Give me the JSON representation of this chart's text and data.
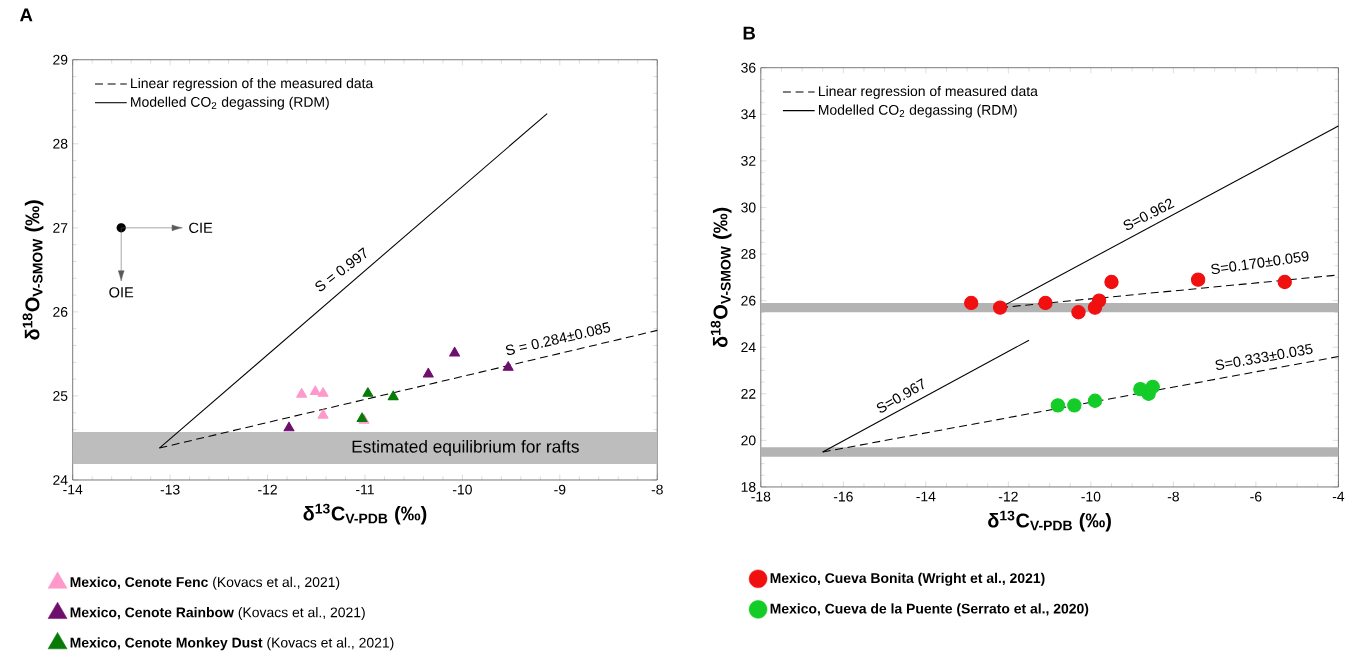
{
  "chart_data": [
    {
      "type": "scatter",
      "title": "A",
      "xlabel": "δ$^{13}$C$_{V-PDB}$ (‰)",
      "ylabel": "δ$^{18}$O$_{V-SMOW}$ (‰)",
      "xlim": [
        -14,
        -8
      ],
      "ylim": [
        24,
        29
      ],
      "xticks": [
        -14,
        -13,
        -12,
        -11,
        -10,
        -9,
        -8
      ],
      "yticks": [
        24,
        25,
        26,
        27,
        28,
        29
      ],
      "legend": "bottom left",
      "marker": "triangle",
      "series": [
        {
          "name": "Linear regression of the measured data",
          "type": "line",
          "line_style": "dashed",
          "marker": "none",
          "color": "#000000",
          "x": [
            -13.11,
            -8.0
          ],
          "values": [
            24.38,
            25.78
          ]
        },
        {
          "name": "Modelled CO$_{2}$ degassing (RDM)",
          "type": "line",
          "line_style": "solid",
          "marker": "none",
          "color": "#000000",
          "x": [
            -13.11,
            -9.13
          ],
          "values": [
            24.38,
            28.36
          ]
        },
        {
          "name": "**Mexico, Cenote Fenc** (Kovacs et al., 2021)",
          "color": "#ff99cc",
          "x": [
            -11.65,
            -11.51,
            -11.43,
            -11.43,
            -11.01
          ],
          "values": [
            25.02,
            25.05,
            25.03,
            24.77,
            24.71
          ]
        },
        {
          "name": "**Mexico, Cenote Rainbow** (Kovacs et al., 2021)",
          "color": "#6e0f6e",
          "x": [
            -11.78,
            -10.35,
            -10.08,
            -9.53
          ],
          "values": [
            24.62,
            25.26,
            25.51,
            25.34
          ]
        },
        {
          "name": "**Mexico, Cenote Monkey Dust** (Kovacs et al., 2021)",
          "color": "#087a08",
          "x": [
            -10.97,
            -10.71,
            -11.03
          ],
          "values": [
            25.03,
            24.99,
            24.73
          ]
        }
      ],
      "bands": [
        {
          "axis": "y",
          "from": 24.19,
          "to": 24.57,
          "label": "Estimated equilibrium for rafts",
          "color": "#bdbdbd"
        }
      ],
      "annotations": [
        "CIE",
        "OIE",
        "S = 0.997",
        "S = 0.284±0.085"
      ]
    },
    {
      "type": "scatter",
      "title": "B",
      "xlabel": "δ$^{13}$C$_{V-PDB}$ (‰)",
      "ylabel": "δ$^{18}$O$_{V-SMOW}$ (‰)",
      "xlim": [
        -18,
        -4
      ],
      "ylim": [
        18,
        36
      ],
      "xticks": [
        -18,
        -16,
        -14,
        -12,
        -10,
        -8,
        -6,
        -4
      ],
      "yticks": [
        18,
        20,
        22,
        24,
        26,
        28,
        30,
        32,
        34,
        36
      ],
      "legend": "bottom left",
      "marker": "circle",
      "series": [
        {
          "name": "Linear regression of measured data",
          "type": "line",
          "line_style": "dashed",
          "marker": "none",
          "color": "#000000",
          "x": [
            -12.2,
            -4.0
          ],
          "values": [
            25.7,
            27.1
          ]
        },
        {
          "name": "Modelled CO$_{2}$ degassing (RDM)",
          "type": "line",
          "line_style": "solid",
          "marker": "none",
          "color": "#000000",
          "x": [
            -12.2,
            -4.0
          ],
          "values": [
            25.7,
            33.5
          ]
        },
        {
          "type": "line",
          "line_style": "dashed",
          "marker": "none",
          "color": "#000000",
          "x": [
            -16.5,
            -4.0
          ],
          "values": [
            19.5,
            23.6
          ]
        },
        {
          "type": "line",
          "line_style": "solid",
          "marker": "none",
          "color": "#000000",
          "x": [
            -16.5,
            -11.5
          ],
          "values": [
            19.5,
            24.3
          ]
        },
        {
          "name": "**Mexico, Cueva Bonita (Wright et al., 2021)**",
          "color": "#f01010",
          "x": [
            -12.9,
            -12.2,
            -11.1,
            -10.3,
            -9.9,
            -9.8,
            -9.5,
            -7.4,
            -5.3
          ],
          "values": [
            25.9,
            25.7,
            25.9,
            25.5,
            25.7,
            26.0,
            26.8,
            26.9,
            26.8
          ]
        },
        {
          "name": "**Mexico, Cueva de la Puente (Serrato et al., 2020)**",
          "color": "#14cc28",
          "x": [
            -10.8,
            -10.4,
            -9.9,
            -8.8,
            -8.6,
            -8.5
          ],
          "values": [
            21.5,
            21.5,
            21.7,
            22.2,
            22.0,
            22.3
          ]
        }
      ],
      "bands": [
        {
          "axis": "y",
          "from": 25.5,
          "to": 25.9,
          "color": "#b3b3b3"
        },
        {
          "axis": "y",
          "from": 19.3,
          "to": 19.7,
          "color": "#b3b3b3"
        }
      ],
      "annotations": [
        "S=0.962",
        "S=0.170±0.059",
        "S=0.333±0.035",
        "S=0.967"
      ]
    }
  ]
}
